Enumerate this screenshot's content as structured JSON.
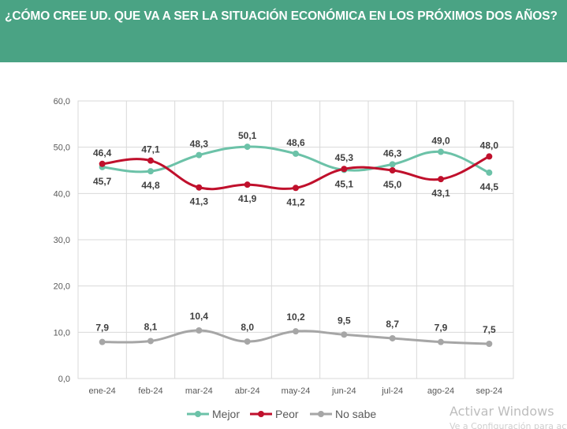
{
  "header": {
    "title": "¿CÓMO CREE UD. QUE VA A SER LA SITUACIÓN ECONÓMICA EN LOS PRÓXIMOS DOS AÑOS?"
  },
  "colors": {
    "banner": "#4aa384",
    "mejor": "#6cc2a8",
    "peor": "#c0102c",
    "no_sabe": "#a6a6a6"
  },
  "chart_data": {
    "type": "line",
    "categories": [
      "ene-24",
      "feb-24",
      "mar-24",
      "abr-24",
      "may-24",
      "jun-24",
      "jul-24",
      "ago-24",
      "sep-24"
    ],
    "ylim": [
      0,
      60
    ],
    "yticks": [
      "0,0",
      "10,0",
      "20,0",
      "30,0",
      "40,0",
      "50,0",
      "60,0"
    ],
    "grid": true,
    "legend_position": "bottom",
    "series": [
      {
        "name": "Mejor",
        "color": "#6cc2a8",
        "values": [
          45.7,
          44.8,
          48.3,
          50.1,
          48.6,
          45.1,
          46.3,
          49.0,
          44.5
        ],
        "labels": [
          "45,7",
          "44,8",
          "48,3",
          "50,1",
          "48,6",
          "45,1",
          "46,3",
          "49,0",
          "44,5"
        ]
      },
      {
        "name": "Peor",
        "color": "#c0102c",
        "values": [
          46.4,
          47.1,
          41.3,
          41.9,
          41.2,
          45.3,
          45.0,
          43.1,
          48.0
        ],
        "labels": [
          "46,4",
          "47,1",
          "41,3",
          "41,9",
          "41,2",
          "45,3",
          "45,0",
          "43,1",
          "48,0"
        ]
      },
      {
        "name": "No sabe",
        "color": "#a6a6a6",
        "values": [
          7.9,
          8.1,
          10.4,
          8.0,
          10.2,
          9.5,
          8.7,
          7.9,
          7.5
        ],
        "labels": [
          "7,9",
          "8,1",
          "10,4",
          "8,0",
          "10,2",
          "9,5",
          "8,7",
          "7,9",
          "7,5"
        ]
      }
    ]
  },
  "watermark": {
    "title": "Activar Windows",
    "subtitle": "Ve a Configuración para activar Windows."
  }
}
